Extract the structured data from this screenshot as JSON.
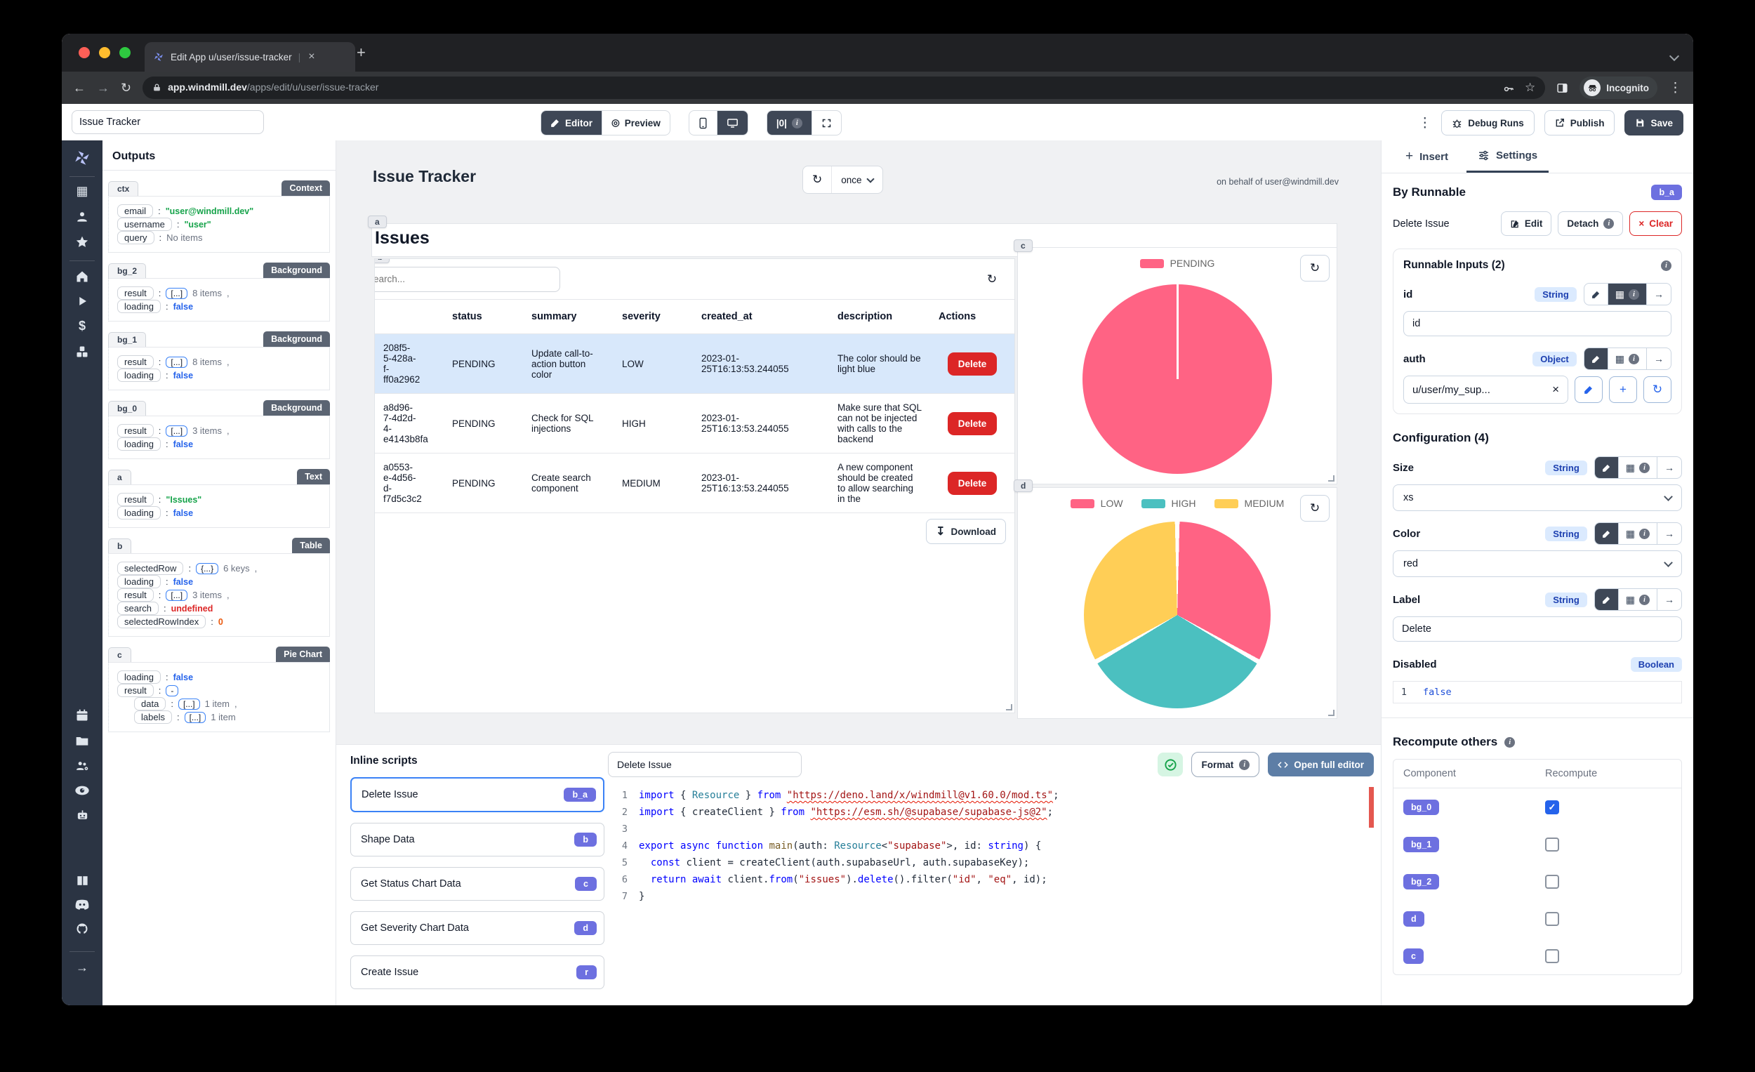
{
  "icons": {
    "refresh": "↻",
    "download": "↧",
    "dots": "⋮",
    "close": "×",
    "plus": "+",
    "star": "☆",
    "back": "←",
    "forward": "→",
    "counter": "|0|",
    "info": "i",
    "arrow_right": "→",
    "clear_x": "×",
    "colon": ":",
    "tab_divider": "|",
    "dollar": "$",
    "preview_eye": "◎",
    "grid": "▦"
  },
  "browser": {
    "tab_title": "Edit App u/user/issue-tracker",
    "new_tab": "+",
    "url_host": "app.windmill.dev",
    "url_path": "/apps/edit/u/user/issue-tracker",
    "incognito_label": "Incognito"
  },
  "topbar": {
    "app_name": "Issue Tracker",
    "editor": "Editor",
    "preview": "Preview",
    "debug_runs": "Debug Runs",
    "publish": "Publish",
    "save": "Save"
  },
  "outputs": {
    "title": "Outputs",
    "sections": [
      {
        "id": "ctx",
        "badge": "Context",
        "rows": [
          {
            "key": "email",
            "value": "\"user@windmill.dev\"",
            "cls": "v-str"
          },
          {
            "key": "username",
            "value": "\"user\"",
            "cls": "v-str"
          },
          {
            "key": "query",
            "value": "No items",
            "cls": "v-muted"
          }
        ]
      },
      {
        "id": "bg_2",
        "badge": "Background",
        "rows": [
          {
            "key": "result",
            "pill": "[...]",
            "value": "8 items",
            "extra": ",",
            "cls": "v-muted"
          },
          {
            "key": "loading",
            "value": "false",
            "cls": "v-bool"
          }
        ]
      },
      {
        "id": "bg_1",
        "badge": "Background",
        "rows": [
          {
            "key": "result",
            "pill": "[...]",
            "value": "8 items",
            "extra": ",",
            "cls": "v-muted"
          },
          {
            "key": "loading",
            "value": "false",
            "cls": "v-bool"
          }
        ]
      },
      {
        "id": "bg_0",
        "badge": "Background",
        "rows": [
          {
            "key": "result",
            "pill": "[...]",
            "value": "3 items",
            "extra": ",",
            "cls": "v-muted"
          },
          {
            "key": "loading",
            "value": "false",
            "cls": "v-bool"
          }
        ]
      },
      {
        "id": "a",
        "badge": "Text",
        "rows": [
          {
            "key": "result",
            "value": "\"Issues\"",
            "cls": "v-str"
          },
          {
            "key": "loading",
            "value": "false",
            "cls": "v-bool"
          }
        ]
      },
      {
        "id": "b",
        "badge": "Table",
        "rows": [
          {
            "key": "selectedRow",
            "pill": "{...}",
            "value": "6 keys",
            "extra": ",",
            "cls": "v-muted"
          },
          {
            "key": "loading",
            "value": "false",
            "cls": "v-bool"
          },
          {
            "key": "result",
            "pill": "[...]",
            "value": "3 items",
            "extra": ",",
            "cls": "v-muted"
          },
          {
            "key": "search",
            "value": "undefined",
            "cls": "v-undef"
          },
          {
            "key": "selectedRowIndex",
            "value": "0",
            "cls": "v-num"
          }
        ]
      },
      {
        "id": "c",
        "badge": "Pie Chart",
        "rows": [
          {
            "key": "loading",
            "value": "false",
            "cls": "v-bool"
          },
          {
            "key": "result",
            "pill": "-"
          },
          {
            "key": "data",
            "pill": "[...]",
            "value": "1 item",
            "extra": ",",
            "indent": "indent",
            "cls": "v-muted"
          },
          {
            "key": "labels",
            "pill": "[...]",
            "value": "1 item",
            "indent": "indent",
            "cls": "v-muted"
          }
        ]
      }
    ]
  },
  "canvas": {
    "header": {
      "title": "Issue Tracker",
      "refresh_mode": "once",
      "on_behalf": "on behalf of user@windmill.dev"
    },
    "title_card": {
      "chip": "a",
      "text": "Issues"
    },
    "table": {
      "chip": "b",
      "search_placeholder": "Search...",
      "columns": [
        "status",
        "summary",
        "severity",
        "created_at",
        "description",
        "Actions"
      ],
      "rows": [
        {
          "id": "208f5-\n5-428a-\nf-\nff0a2962",
          "status": "PENDING",
          "summary": "Update call-to-action button color",
          "severity": "LOW",
          "created_at": "2023-01-\n25T16:13:53.244055",
          "description": "The color should be light blue",
          "action": "Delete",
          "state": "selected"
        },
        {
          "id": "a8d96-\n7-4d2d-\n4-\ne4143b8fa",
          "status": "PENDING",
          "summary": "Check for SQL injections",
          "severity": "HIGH",
          "created_at": "2023-01-\n25T16:13:53.244055",
          "description": "Make sure that SQL can not be injected with calls to the backend",
          "action": "Delete",
          "state": ""
        },
        {
          "id": "a0553-\ne-4d56-\nd-\nf7d5c3c2",
          "status": "PENDING",
          "summary": "Create search component",
          "severity": "MEDIUM",
          "created_at": "2023-01-\n25T16:13:53.244055",
          "description": "A new component should be created to allow searching in the",
          "action": "Delete",
          "state": ""
        }
      ],
      "download": "Download"
    },
    "charts": [
      {
        "chip": "c",
        "type": "pie",
        "title": "",
        "labels": [
          "PENDING"
        ],
        "values": [
          100
        ],
        "legend": [
          {
            "label": "PENDING",
            "color": "#FF6384"
          }
        ],
        "segments": [
          {
            "color": "#FF6384",
            "from": 0,
            "to": 100
          }
        ]
      },
      {
        "chip": "d",
        "type": "pie",
        "title": "",
        "labels": [
          "LOW",
          "HIGH",
          "MEDIUM"
        ],
        "values": [
          33.3,
          33.3,
          33.3
        ],
        "legend": [
          {
            "label": "LOW",
            "color": "#FF6384"
          },
          {
            "label": "HIGH",
            "color": "#4BC0C0"
          },
          {
            "label": "MEDIUM",
            "color": "#FFCE56"
          }
        ],
        "segments": [
          {
            "color": "#ffffff",
            "from": 0,
            "to": 0.4
          },
          {
            "color": "#FF6384",
            "from": 0.4,
            "to": 32.9
          },
          {
            "color": "#ffffff",
            "from": 32.9,
            "to": 33.7
          },
          {
            "color": "#4BC0C0",
            "from": 33.7,
            "to": 66.3
          },
          {
            "color": "#ffffff",
            "from": 66.3,
            "to": 67.1
          },
          {
            "color": "#FFCE56",
            "from": 67.1,
            "to": 99.6
          },
          {
            "color": "#ffffff",
            "from": 99.6,
            "to": 100
          }
        ]
      }
    ]
  },
  "scripts_panel": {
    "title": "Inline scripts",
    "items": [
      {
        "label": "Delete Issue",
        "badge": "b_a",
        "state": "selected"
      },
      {
        "label": "Shape Data",
        "badge": "b",
        "state": ""
      },
      {
        "label": "Get Status Chart Data",
        "badge": "c",
        "state": ""
      },
      {
        "label": "Get Severity Chart Data",
        "badge": "d",
        "state": ""
      },
      {
        "label": "Create Issue",
        "badge": "r",
        "state": ""
      }
    ]
  },
  "editor": {
    "name": "Delete Issue",
    "format": "Format",
    "open_full": "Open full editor",
    "code": [
      {
        "no": "1",
        "toks": [
          [
            "kw",
            "import"
          ],
          [
            "pl",
            " { "
          ],
          [
            "ty",
            "Resource"
          ],
          [
            "pl",
            " } "
          ],
          [
            "kw",
            "from"
          ],
          [
            "pl",
            " "
          ],
          [
            "stru",
            "\"https://deno.land/x/windmill@v1.60.0/mod.ts\""
          ],
          [
            "pl",
            ";"
          ]
        ]
      },
      {
        "no": "2",
        "toks": [
          [
            "kw",
            "import"
          ],
          [
            "pl",
            " { createClient } "
          ],
          [
            "kw",
            "from"
          ],
          [
            "pl",
            " "
          ],
          [
            "stru",
            "\"https://esm.sh/@supabase/supabase-js@2\""
          ],
          [
            "pl",
            ";"
          ]
        ]
      },
      {
        "no": "3",
        "toks": []
      },
      {
        "no": "4",
        "toks": [
          [
            "kw",
            "export"
          ],
          [
            "pl",
            " "
          ],
          [
            "kw",
            "async"
          ],
          [
            "pl",
            " "
          ],
          [
            "kw",
            "function"
          ],
          [
            "pl",
            " "
          ],
          [
            "fn",
            "main"
          ],
          [
            "pl",
            "(auth: "
          ],
          [
            "ty",
            "Resource"
          ],
          [
            "pl",
            "<"
          ],
          [
            "str",
            "\"supabase\""
          ],
          [
            "pl",
            ">, id: "
          ],
          [
            "kw",
            "string"
          ],
          [
            "pl",
            ") {"
          ]
        ]
      },
      {
        "no": "5",
        "toks": [
          [
            "pl",
            "  "
          ],
          [
            "kw",
            "const"
          ],
          [
            "pl",
            " client = createClient(auth.supabaseUrl, auth.supabaseKey);"
          ]
        ]
      },
      {
        "no": "6",
        "toks": [
          [
            "pl",
            "  "
          ],
          [
            "kw",
            "return"
          ],
          [
            "pl",
            " "
          ],
          [
            "kw",
            "await"
          ],
          [
            "pl",
            " client."
          ],
          [
            "kw",
            "from"
          ],
          [
            "pl",
            "("
          ],
          [
            "str",
            "\"issues\""
          ],
          [
            "pl",
            ")."
          ],
          [
            "kw",
            "delete"
          ],
          [
            "pl",
            "().filter("
          ],
          [
            "str",
            "\"id\""
          ],
          [
            "pl",
            ", "
          ],
          [
            "str",
            "\"eq\""
          ],
          [
            "pl",
            ", id);"
          ]
        ]
      },
      {
        "no": "7",
        "toks": [
          [
            "pl",
            "}"
          ]
        ]
      }
    ]
  },
  "settings": {
    "tab_insert": "Insert",
    "tab_settings": "Settings",
    "by_runnable": {
      "title": "By Runnable",
      "badge": "b_a",
      "name": "Delete Issue",
      "edit": "Edit",
      "detach": "Detach",
      "clear": "Clear"
    },
    "runnable_inputs": {
      "title": "Runnable Inputs (2)",
      "fields": [
        {
          "label": "id",
          "type": "String",
          "cls": "mode-input act-grid",
          "value": "id"
        },
        {
          "label": "auth",
          "type": "Object",
          "cls": "mode-resource act-pencil",
          "value": "u/user/my_sup..."
        }
      ]
    },
    "configuration": {
      "title": "Configuration (4)",
      "fields": [
        {
          "label": "Size",
          "type": "String",
          "cls": "mode-select act-pencil",
          "value": "xs"
        },
        {
          "label": "Color",
          "type": "String",
          "cls": "mode-select act-pencil",
          "value": "red"
        },
        {
          "label": "Label",
          "type": "String",
          "cls": "mode-input act-pencil",
          "value": "Delete"
        },
        {
          "label": "Disabled",
          "type": "Boolean",
          "cls": "mode-code",
          "line_no": "1",
          "value": "false"
        }
      ]
    },
    "recompute": {
      "title": "Recompute others",
      "col_component": "Component",
      "col_recompute": "Recompute",
      "rows": [
        {
          "label": "bg_0",
          "state": "checked"
        },
        {
          "label": "bg_1",
          "state": ""
        },
        {
          "label": "bg_2",
          "state": ""
        },
        {
          "label": "d",
          "state": ""
        },
        {
          "label": "c",
          "state": ""
        }
      ]
    }
  },
  "colors": {
    "accent_indigo": "#6d70e0",
    "pie_pink": "#FF6384",
    "pie_teal": "#4BC0C0",
    "pie_yellow": "#FFCE56",
    "selected_row": "#d8e8fb",
    "delete_red": "#dc2626"
  }
}
